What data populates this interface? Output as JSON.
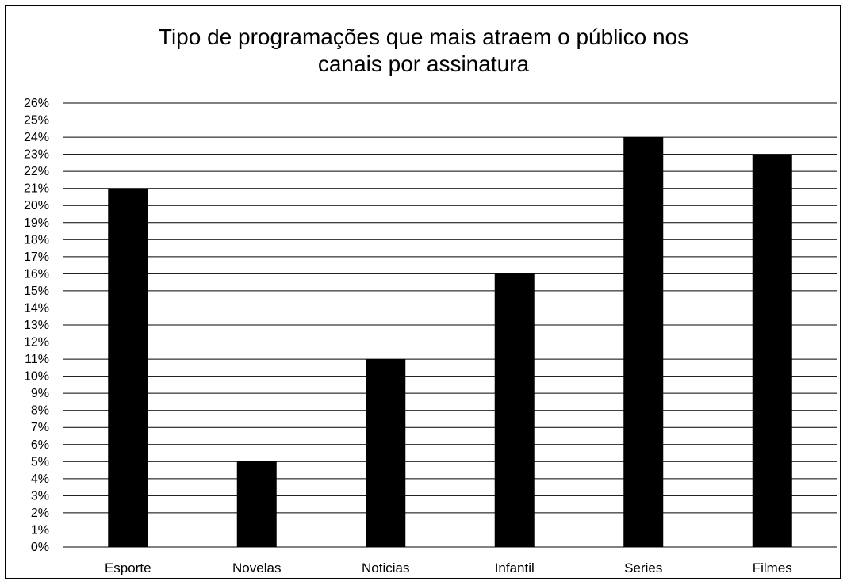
{
  "chart_data": {
    "type": "bar",
    "title_lines": [
      "Tipo de programações que mais atraem o público nos",
      "canais por assinatura"
    ],
    "categories": [
      "Esporte",
      "Novelas",
      "Noticias",
      "Infantil",
      "Series",
      "Filmes"
    ],
    "values": [
      21,
      5,
      11,
      16,
      24,
      23
    ],
    "y_tick_labels": [
      "0%",
      "1%",
      "2%",
      "3%",
      "4%",
      "5%",
      "6%",
      "7%",
      "8%",
      "9%",
      "10%",
      "11%",
      "12%",
      "13%",
      "14%",
      "15%",
      "16%",
      "17%",
      "18%",
      "19%",
      "20%",
      "21%",
      "22%",
      "23%",
      "24%",
      "25%",
      "26%"
    ],
    "ylim": [
      0,
      26
    ],
    "y_step": 1,
    "grid": true,
    "legend": false,
    "colors": {
      "bar": "#000000",
      "grid": "#000000",
      "background": "#ffffff"
    }
  }
}
